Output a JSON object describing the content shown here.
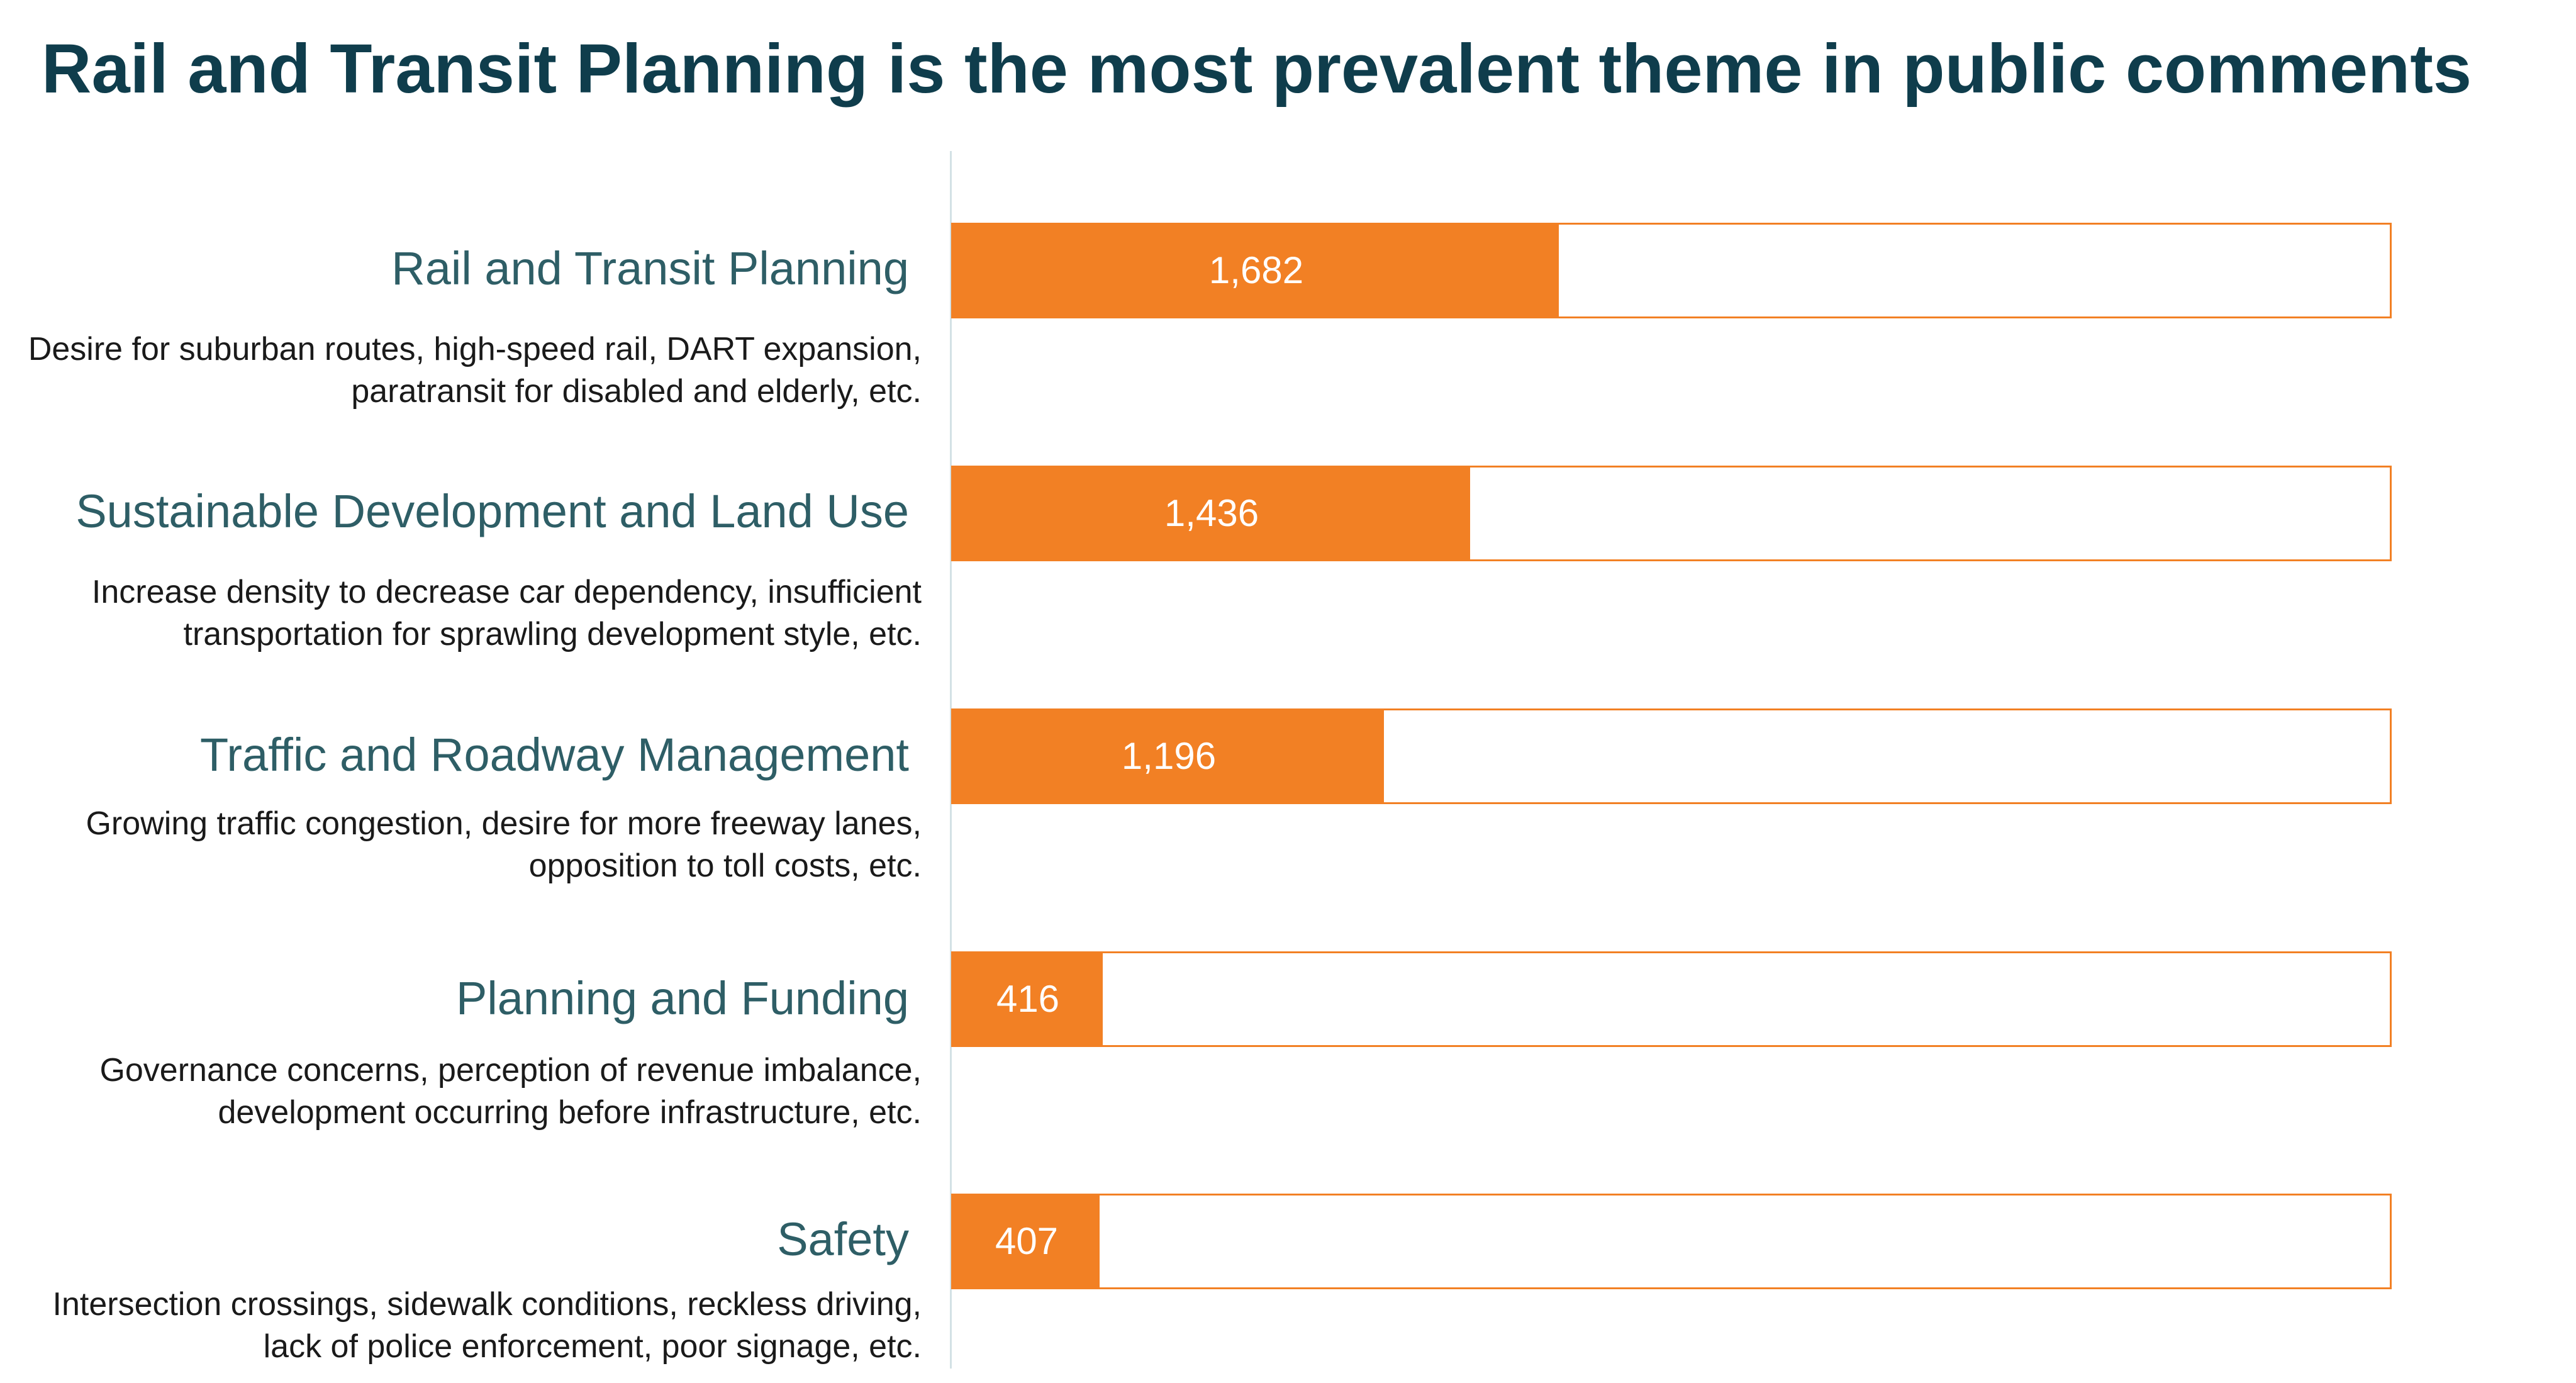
{
  "title": "Rail and Transit Planning is the most prevalent theme in public comments",
  "colors": {
    "title": "#0f3d4c",
    "category_label": "#2e5e66",
    "bar": "#f28024",
    "track_border": "#f28024",
    "axis_line": "#d3e1e5",
    "value_text": "#ffffff"
  },
  "chart_data": {
    "type": "bar",
    "orientation": "horizontal",
    "categories": [
      "Rail and Transit Planning",
      "Sustainable Development and Land Use",
      "Traffic and Roadway Management",
      "Planning and Funding",
      "Safety"
    ],
    "descriptions": [
      "Desire for suburban routes, high-speed rail, DART expansion, paratransit for disabled and elderly, etc.",
      "Increase density to decrease car dependency, insufficient transportation for sprawling development style, etc.",
      "Growing traffic congestion, desire for more freeway lanes, opposition to toll costs, etc.",
      "Governance concerns, perception of revenue imbalance, development occurring before infrastructure, etc.",
      "Intersection crossings, sidewalk conditions, reckless driving, lack of police enforcement, poor signage, etc."
    ],
    "values": [
      1682,
      1436,
      1196,
      416,
      407
    ],
    "value_labels": [
      "1,682",
      "1,436",
      "1,196",
      "416",
      "407"
    ],
    "xlim": [
      0,
      4000
    ],
    "title": "Rail and Transit Planning is the most prevalent theme in public comments",
    "xlabel": "",
    "ylabel": "",
    "grid": false,
    "legend": "none"
  }
}
